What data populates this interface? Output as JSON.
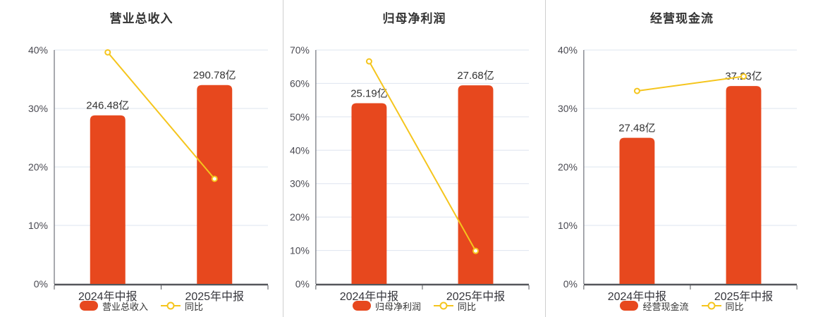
{
  "page": {
    "background": "#ffffff"
  },
  "colors": {
    "bar": "#E7481E",
    "line": "#F5C51D",
    "marker_fill": "#ffffff",
    "grid": "#dee4ef",
    "axis_x": "#54565b",
    "axis_y": "#6e7079",
    "tick_label": "#4a4a52",
    "x_label": "#36363c",
    "value_label": "#333333",
    "title": "#333333",
    "legend_label": "#333333",
    "divider": "#cfcfcf"
  },
  "categories": [
    "2024年中报",
    "2025年中报"
  ],
  "chart_data": [
    {
      "type": "bar",
      "title": "营业总收入",
      "categories": [
        "2024年中报",
        "2025年中报"
      ],
      "series": [
        {
          "name": "营业总收入",
          "type": "bar",
          "values": [
            246.48,
            290.78
          ],
          "unit": "亿",
          "labels": [
            "246.48亿",
            "290.78亿"
          ],
          "axis_max": 342
        },
        {
          "name": "同比",
          "type": "line",
          "values": [
            39.6,
            17.97
          ],
          "unit": "%"
        }
      ],
      "yaxis": {
        "min": 0,
        "max": 40,
        "step": 10
      },
      "y_ticks": [
        "0%",
        "10%",
        "20%",
        "30%",
        "40%"
      ],
      "legend": [
        "营业总收入",
        "同比"
      ],
      "grid": true,
      "legend_position": "bottom"
    },
    {
      "type": "bar",
      "title": "归母净利润",
      "categories": [
        "2024年中报",
        "2025年中报"
      ],
      "series": [
        {
          "name": "归母净利润",
          "type": "bar",
          "values": [
            25.19,
            27.68
          ],
          "unit": "亿",
          "labels": [
            "25.19亿",
            "27.68亿"
          ],
          "axis_max": 32.6
        },
        {
          "name": "同比",
          "type": "line",
          "values": [
            66.6,
            9.88
          ],
          "unit": "%"
        }
      ],
      "yaxis": {
        "min": 0,
        "max": 70,
        "step": 10
      },
      "y_ticks": [
        "0%",
        "10%",
        "20%",
        "30%",
        "40%",
        "50%",
        "60%",
        "70%"
      ],
      "legend": [
        "归母净利润",
        "同比"
      ],
      "grid": true,
      "legend_position": "bottom"
    },
    {
      "type": "bar",
      "title": "经营现金流",
      "categories": [
        "2024年中报",
        "2025年中报"
      ],
      "series": [
        {
          "name": "经营现金流",
          "type": "bar",
          "values": [
            27.48,
            37.23
          ],
          "unit": "亿",
          "labels": [
            "27.48亿",
            "37.23亿"
          ],
          "axis_max": 44
        },
        {
          "name": "同比",
          "type": "line",
          "values": [
            33.0,
            35.48
          ],
          "unit": "%"
        }
      ],
      "yaxis": {
        "min": 0,
        "max": 40,
        "step": 10
      },
      "y_ticks": [
        "0%",
        "10%",
        "20%",
        "30%",
        "40%"
      ],
      "legend": [
        "经营现金流",
        "同比"
      ],
      "grid": true,
      "legend_position": "bottom"
    }
  ]
}
